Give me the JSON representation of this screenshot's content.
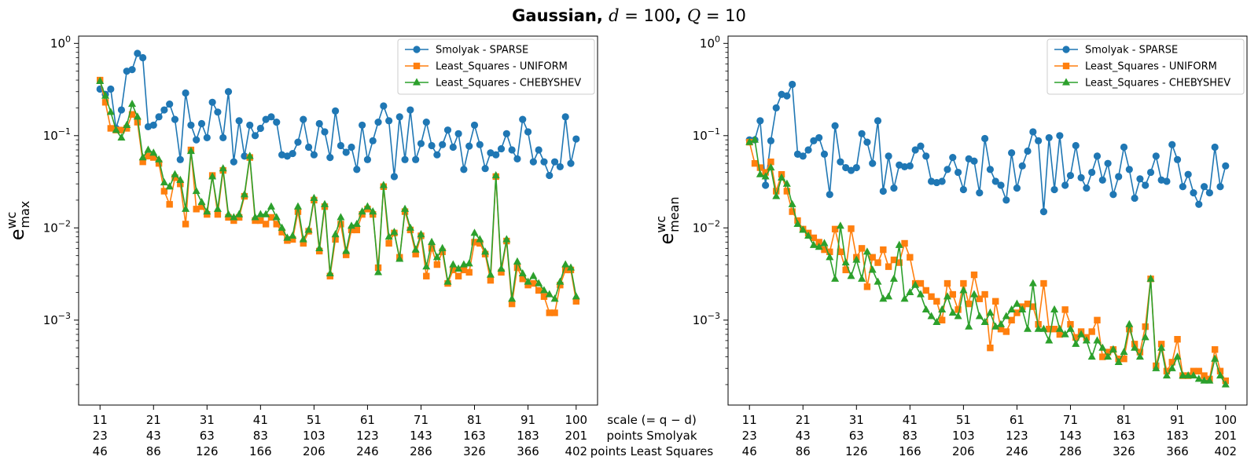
{
  "title": {
    "prefix": "Gaussian",
    "d_sym": "d",
    "d_val": " = 100",
    "q_sym": "Q",
    "q_val": " = 10"
  },
  "axis_caption": {
    "line1": "scale (= q − d)",
    "line2": "points Smolyak",
    "line3": "points Least Squares"
  },
  "x_tick_rows": {
    "scale": [
      "11",
      "21",
      "31",
      "41",
      "51",
      "61",
      "71",
      "81",
      "91",
      "100"
    ],
    "points_smolyak": [
      "23",
      "43",
      "63",
      "83",
      "103",
      "123",
      "143",
      "163",
      "183",
      "201"
    ],
    "points_least_squares": [
      "46",
      "86",
      "126",
      "166",
      "206",
      "246",
      "286",
      "326",
      "366",
      "402"
    ]
  },
  "series_styles": [
    {
      "name": "Smolyak - SPARSE",
      "color": "#1f77b4",
      "marker": "circle"
    },
    {
      "name": "Least_Squares - UNIFORM",
      "color": "#ff7f0e",
      "marker": "square"
    },
    {
      "name": "Least_Squares - CHEBYSHEV",
      "color": "#2ca02c",
      "marker": "triangle"
    }
  ],
  "chart_data": [
    {
      "type": "line",
      "title": "Gaussian, d = 100, Q = 10",
      "ylabel": "e_max^wc",
      "yscale": "log",
      "ylim": [
        0.00012,
        1.2
      ],
      "xlim": [
        7,
        104
      ],
      "legend": "top-right",
      "y_ticks": [
        {
          "value": 1,
          "label_base": "10",
          "label_exp": "0"
        },
        {
          "value": 0.1,
          "label_base": "10",
          "label_exp": "−1"
        },
        {
          "value": 0.01,
          "label_base": "10",
          "label_exp": "−2"
        },
        {
          "value": 0.001,
          "label_base": "10",
          "label_exp": "−3"
        }
      ],
      "x_ticks": [
        11,
        21,
        31,
        41,
        51,
        61,
        71,
        81,
        91,
        100
      ],
      "x_start": 11,
      "series": [
        {
          "name": "Smolyak - SPARSE",
          "values": [
            0.32,
            0.28,
            0.32,
            0.12,
            0.19,
            0.5,
            0.52,
            0.78,
            0.7,
            0.125,
            0.13,
            0.16,
            0.19,
            0.22,
            0.15,
            0.055,
            0.29,
            0.13,
            0.09,
            0.135,
            0.095,
            0.23,
            0.18,
            0.095,
            0.3,
            0.052,
            0.145,
            0.06,
            0.13,
            0.1,
            0.12,
            0.15,
            0.16,
            0.14,
            0.062,
            0.06,
            0.064,
            0.085,
            0.15,
            0.075,
            0.062,
            0.135,
            0.11,
            0.058,
            0.185,
            0.078,
            0.066,
            0.075,
            0.043,
            0.13,
            0.055,
            0.088,
            0.14,
            0.21,
            0.145,
            0.036,
            0.16,
            0.055,
            0.19,
            0.055,
            0.082,
            0.14,
            0.078,
            0.062,
            0.08,
            0.115,
            0.075,
            0.105,
            0.043,
            0.077,
            0.13,
            0.08,
            0.044,
            0.065,
            0.062,
            0.072,
            0.105,
            0.07,
            0.056,
            0.15,
            0.11,
            0.052,
            0.07,
            0.052,
            0.037,
            0.052,
            0.046,
            0.16,
            0.05,
            0.092
          ]
        },
        {
          "name": "Least_Squares - UNIFORM",
          "values": [
            0.4,
            0.23,
            0.12,
            0.115,
            0.115,
            0.12,
            0.17,
            0.14,
            0.052,
            0.06,
            0.058,
            0.05,
            0.025,
            0.018,
            0.035,
            0.03,
            0.011,
            0.07,
            0.016,
            0.017,
            0.014,
            0.037,
            0.014,
            0.042,
            0.013,
            0.012,
            0.013,
            0.022,
            0.058,
            0.012,
            0.012,
            0.011,
            0.013,
            0.011,
            0.009,
            0.0073,
            0.0075,
            0.015,
            0.0068,
            0.0092,
            0.02,
            0.0056,
            0.017,
            0.003,
            0.0075,
            0.011,
            0.0051,
            0.0095,
            0.0095,
            0.014,
            0.016,
            0.014,
            0.0037,
            0.028,
            0.0068,
            0.0088,
            0.0048,
            0.015,
            0.0095,
            0.0052,
            0.0082,
            0.003,
            0.006,
            0.004,
            0.0055,
            0.0025,
            0.0035,
            0.003,
            0.0035,
            0.0033,
            0.007,
            0.0068,
            0.0052,
            0.0027,
            0.036,
            0.0033,
            0.0072,
            0.0015,
            0.0037,
            0.0028,
            0.0024,
            0.0025,
            0.0021,
            0.0018,
            0.0012,
            0.0012,
            0.0024,
            0.0035,
            0.0035,
            0.0016
          ]
        },
        {
          "name": "Least_Squares - CHEBYSHEV",
          "values": [
            0.39,
            0.27,
            0.18,
            0.115,
            0.095,
            0.13,
            0.22,
            0.16,
            0.058,
            0.07,
            0.065,
            0.055,
            0.031,
            0.028,
            0.038,
            0.033,
            0.016,
            0.068,
            0.025,
            0.019,
            0.015,
            0.036,
            0.016,
            0.044,
            0.014,
            0.013,
            0.014,
            0.023,
            0.06,
            0.013,
            0.014,
            0.014,
            0.017,
            0.013,
            0.01,
            0.0078,
            0.0082,
            0.017,
            0.0075,
            0.0095,
            0.021,
            0.006,
            0.018,
            0.0032,
            0.0085,
            0.013,
            0.0056,
            0.0105,
            0.011,
            0.015,
            0.017,
            0.015,
            0.0033,
            0.029,
            0.008,
            0.009,
            0.0046,
            0.016,
            0.01,
            0.0058,
            0.0085,
            0.0038,
            0.007,
            0.0048,
            0.006,
            0.0026,
            0.004,
            0.0036,
            0.004,
            0.0041,
            0.0088,
            0.0075,
            0.0055,
            0.0031,
            0.037,
            0.0036,
            0.0075,
            0.0017,
            0.0043,
            0.0032,
            0.0026,
            0.003,
            0.0025,
            0.0021,
            0.0019,
            0.0017,
            0.0026,
            0.004,
            0.0037,
            0.0018
          ]
        }
      ]
    },
    {
      "type": "line",
      "ylabel": "e_mean^wc",
      "yscale": "log",
      "ylim": [
        0.00012,
        1.2
      ],
      "xlim": [
        7,
        104
      ],
      "legend": "top-right",
      "y_ticks": [
        {
          "value": 1,
          "label_base": "10",
          "label_exp": "0"
        },
        {
          "value": 0.1,
          "label_base": "10",
          "label_exp": "−1"
        },
        {
          "value": 0.01,
          "label_base": "10",
          "label_exp": "−2"
        },
        {
          "value": 0.001,
          "label_base": "10",
          "label_exp": "−3"
        }
      ],
      "x_ticks": [
        11,
        21,
        31,
        41,
        51,
        61,
        71,
        81,
        91,
        100
      ],
      "x_start": 11,
      "series": [
        {
          "name": "Smolyak - SPARSE",
          "values": [
            0.09,
            0.09,
            0.145,
            0.029,
            0.088,
            0.2,
            0.28,
            0.27,
            0.36,
            0.063,
            0.06,
            0.07,
            0.088,
            0.095,
            0.063,
            0.023,
            0.128,
            0.052,
            0.045,
            0.042,
            0.045,
            0.105,
            0.085,
            0.05,
            0.145,
            0.025,
            0.06,
            0.027,
            0.048,
            0.046,
            0.047,
            0.07,
            0.077,
            0.06,
            0.032,
            0.031,
            0.032,
            0.043,
            0.058,
            0.04,
            0.026,
            0.056,
            0.053,
            0.024,
            0.093,
            0.043,
            0.032,
            0.029,
            0.02,
            0.065,
            0.027,
            0.047,
            0.068,
            0.11,
            0.088,
            0.015,
            0.095,
            0.026,
            0.1,
            0.029,
            0.037,
            0.078,
            0.035,
            0.027,
            0.04,
            0.06,
            0.033,
            0.05,
            0.023,
            0.036,
            0.075,
            0.043,
            0.021,
            0.034,
            0.029,
            0.04,
            0.06,
            0.033,
            0.032,
            0.08,
            0.055,
            0.028,
            0.038,
            0.024,
            0.018,
            0.028,
            0.024,
            0.075,
            0.028,
            0.047
          ]
        },
        {
          "name": "Least_Squares - UNIFORM",
          "values": [
            0.085,
            0.05,
            0.045,
            0.04,
            0.052,
            0.025,
            0.038,
            0.025,
            0.015,
            0.012,
            0.0097,
            0.0088,
            0.0078,
            0.007,
            0.0058,
            0.0055,
            0.0097,
            0.0055,
            0.0035,
            0.0098,
            0.0048,
            0.006,
            0.0023,
            0.0048,
            0.0042,
            0.0058,
            0.0038,
            0.0045,
            0.0042,
            0.0068,
            0.0048,
            0.0025,
            0.0025,
            0.0021,
            0.0018,
            0.0016,
            0.001,
            0.0025,
            0.0019,
            0.0013,
            0.0025,
            0.0015,
            0.0031,
            0.0017,
            0.0019,
            0.0005,
            0.0016,
            0.0008,
            0.00075,
            0.001,
            0.0012,
            0.0014,
            0.0015,
            0.0014,
            0.0009,
            0.0025,
            0.0008,
            0.0008,
            0.0007,
            0.0013,
            0.0009,
            0.00065,
            0.00075,
            0.00065,
            0.00075,
            0.001,
            0.0004,
            0.00045,
            0.00048,
            0.00038,
            0.00038,
            0.0008,
            0.00055,
            0.00045,
            0.00085,
            0.0028,
            0.00032,
            0.00055,
            0.00028,
            0.00035,
            0.00062,
            0.00025,
            0.00025,
            0.00028,
            0.00028,
            0.00025,
            0.00023,
            0.00048,
            0.00028,
            0.00022
          ]
        },
        {
          "name": "Least_Squares - CHEBYSHEV",
          "values": [
            0.085,
            0.09,
            0.038,
            0.036,
            0.045,
            0.022,
            0.035,
            0.03,
            0.018,
            0.011,
            0.0095,
            0.0082,
            0.0065,
            0.0062,
            0.0068,
            0.0048,
            0.0028,
            0.0105,
            0.0042,
            0.003,
            0.0045,
            0.0028,
            0.0055,
            0.0035,
            0.0026,
            0.0017,
            0.0018,
            0.0028,
            0.0065,
            0.0017,
            0.002,
            0.0024,
            0.0019,
            0.0013,
            0.0011,
            0.00095,
            0.0013,
            0.0018,
            0.0012,
            0.0011,
            0.0021,
            0.00085,
            0.0019,
            0.0011,
            0.00095,
            0.0012,
            0.00085,
            0.0009,
            0.0011,
            0.0013,
            0.0015,
            0.0013,
            0.0008,
            0.0025,
            0.0008,
            0.0008,
            0.0006,
            0.0013,
            0.0008,
            0.0007,
            0.0008,
            0.00055,
            0.0007,
            0.0006,
            0.0004,
            0.0006,
            0.0005,
            0.0004,
            0.00048,
            0.00035,
            0.00045,
            0.0009,
            0.0005,
            0.0004,
            0.00065,
            0.0028,
            0.0003,
            0.0005,
            0.00025,
            0.0003,
            0.0004,
            0.00025,
            0.00025,
            0.00025,
            0.00023,
            0.00022,
            0.00022,
            0.00038,
            0.00025,
            0.0002
          ]
        }
      ]
    }
  ]
}
